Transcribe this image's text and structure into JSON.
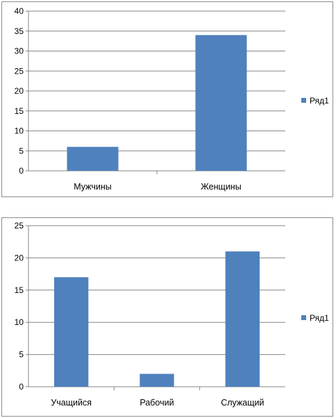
{
  "chart_data": [
    {
      "type": "bar",
      "categories": [
        "Мужчины",
        "Женщины"
      ],
      "series": [
        {
          "name": "Ряд1",
          "values": [
            6,
            34
          ]
        }
      ],
      "ylim": [
        0,
        40
      ],
      "yticks": [
        0,
        5,
        10,
        15,
        20,
        25,
        30,
        35,
        40
      ],
      "grid": true,
      "legend_position": "right",
      "color": "#4f81bd"
    },
    {
      "type": "bar",
      "categories": [
        "Учащийся",
        "Рабочий",
        "Служащий"
      ],
      "series": [
        {
          "name": "Ряд1",
          "values": [
            17,
            2,
            21
          ]
        }
      ],
      "ylim": [
        0,
        25
      ],
      "yticks": [
        0,
        5,
        10,
        15,
        20,
        25
      ],
      "grid": true,
      "legend_position": "right",
      "color": "#4f81bd"
    }
  ]
}
